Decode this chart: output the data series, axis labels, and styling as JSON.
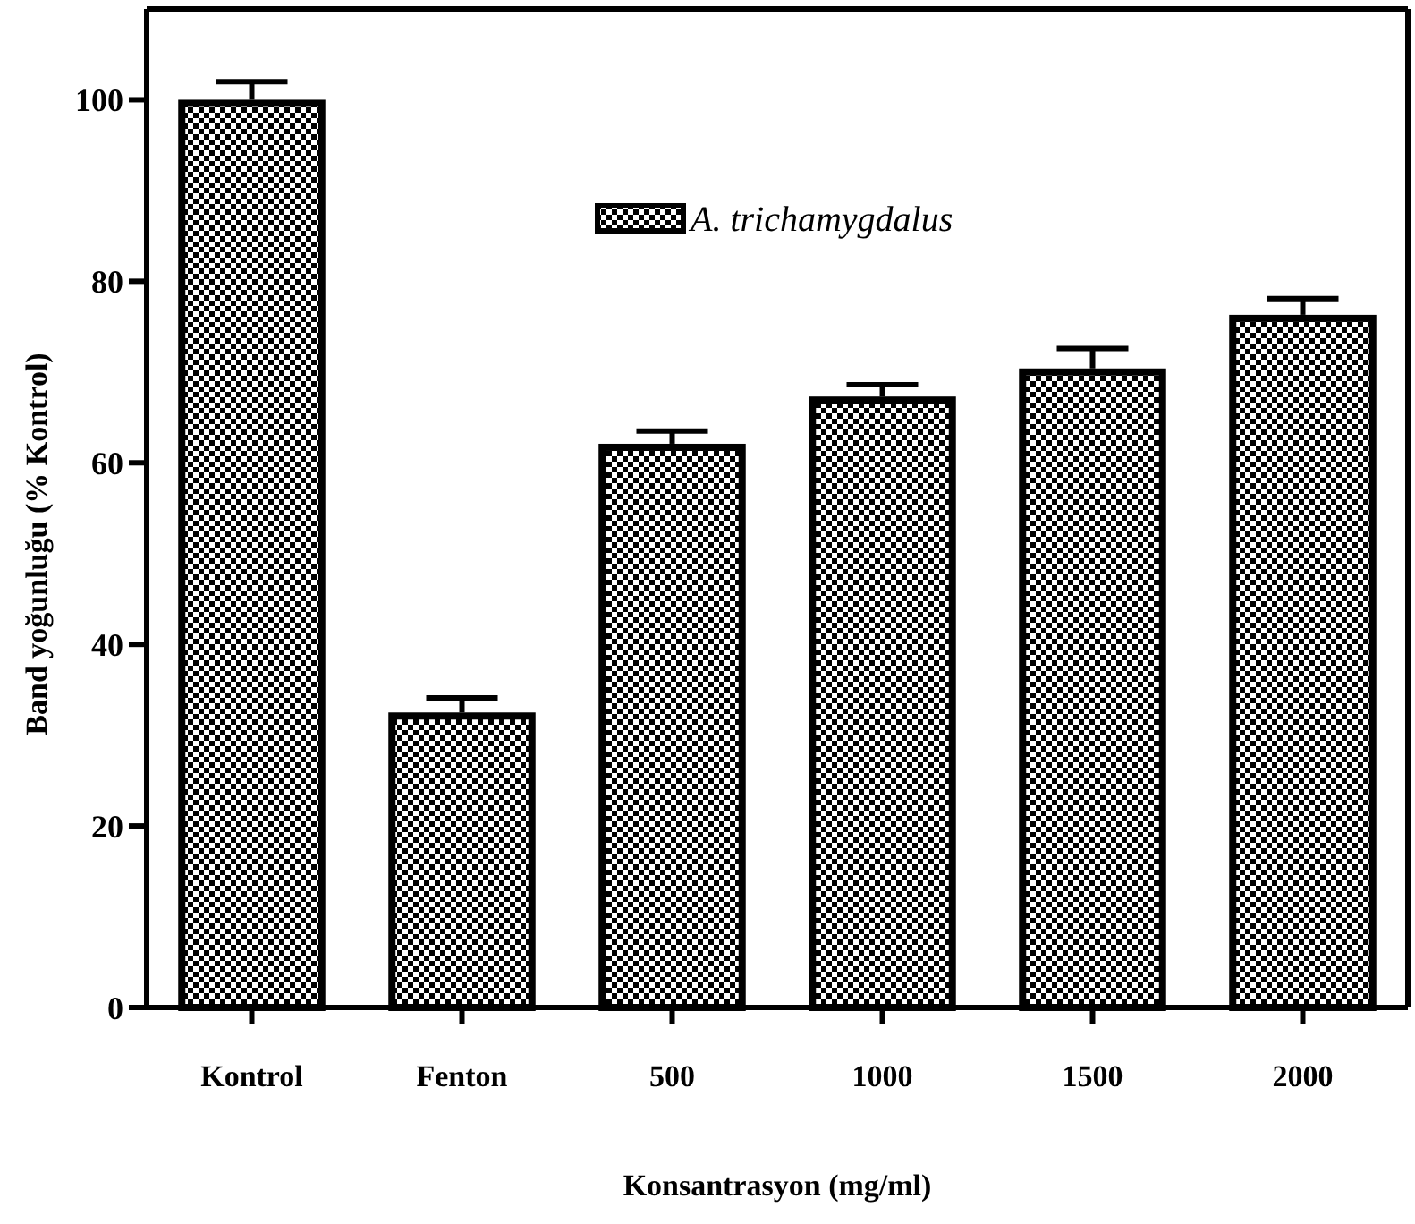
{
  "chart_data": {
    "type": "bar",
    "xlabel": "Konsantrasyon (mg/ml)",
    "ylabel": "Band yoğunluğu (% Kontrol)",
    "categories": [
      "Kontrol",
      "Fenton",
      "500",
      "1000",
      "1500",
      "2000"
    ],
    "series": [
      {
        "name": "A. trichamygdalus",
        "color": "#000000",
        "values": [
          100,
          32.5,
          62.1,
          67.3,
          70.4,
          76.3
        ],
        "errors": [
          2.0,
          1.6,
          1.4,
          1.3,
          2.2,
          1.8
        ]
      }
    ],
    "ylim": [
      0,
      110
    ],
    "yticks": [
      0,
      20,
      40,
      60,
      80,
      100
    ],
    "grid": false,
    "legend": "top"
  }
}
